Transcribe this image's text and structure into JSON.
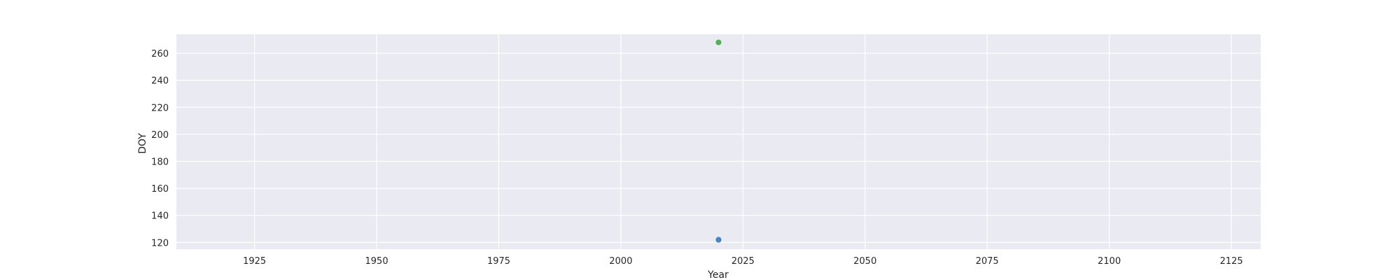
{
  "chart_data": {
    "type": "scatter",
    "title": "",
    "xlabel": "Year",
    "ylabel": "DOY",
    "xlim": [
      1909,
      2131
    ],
    "ylim": [
      115,
      274
    ],
    "xticks": [
      1925,
      1950,
      1975,
      2000,
      2025,
      2050,
      2075,
      2100,
      2125
    ],
    "yticks": [
      120,
      140,
      160,
      180,
      200,
      220,
      240,
      260
    ],
    "grid": true,
    "legend": null,
    "colors": {
      "background": "#eaeaf2",
      "grid": "#ffffff"
    },
    "series": [
      {
        "name": "series-blue",
        "color": "#3b7fbf",
        "points": [
          {
            "x": 2020,
            "y": 122
          }
        ]
      },
      {
        "name": "series-green",
        "color": "#4cad4c",
        "points": [
          {
            "x": 2020,
            "y": 268
          }
        ]
      }
    ]
  }
}
